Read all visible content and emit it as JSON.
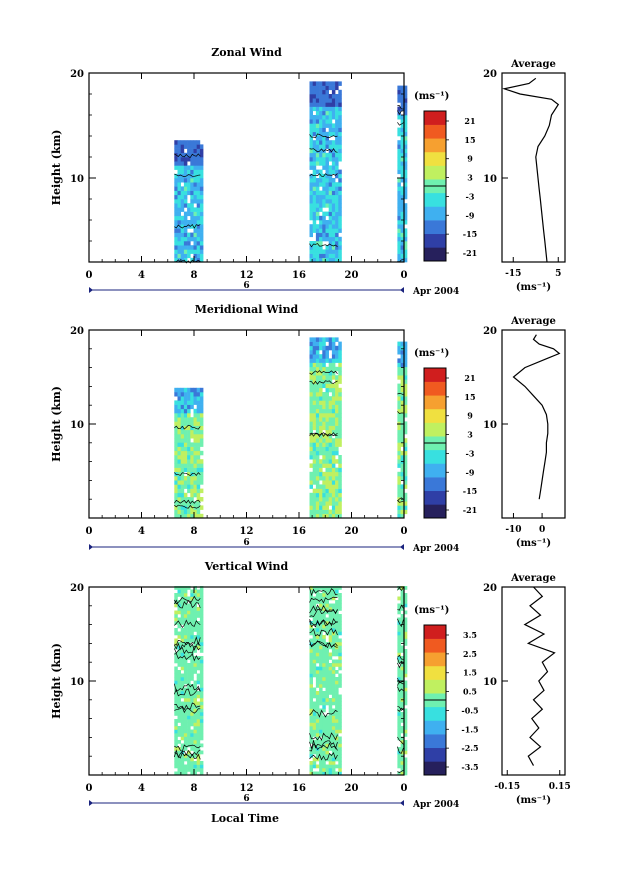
{
  "chart_data": {
    "type": "heatmap",
    "x_label": "Local Time",
    "x_ticks": [
      "0",
      "4",
      "8",
      "12",
      "16",
      "20",
      "0"
    ],
    "date_marker": "6",
    "date_label": "Apr 2004",
    "y_label": "Height (km)",
    "y_ticks": [
      "20",
      "10"
    ],
    "unit_label": "(ms⁻¹)",
    "profile_unit_label": "(ms⁻¹)",
    "profile_title": "Average",
    "panels": [
      {
        "title": "Zonal Wind",
        "colorbar_ticks": [
          "21",
          "15",
          "9",
          "3",
          "-3",
          "-9",
          "-15",
          "-21"
        ],
        "profile_ticks": [
          "-15",
          "5"
        ],
        "profile_xlim": [
          -20,
          8
        ],
        "profile": [
          {
            "h": 2,
            "v": 0
          },
          {
            "h": 3,
            "v": -0.5
          },
          {
            "h": 4,
            "v": -1
          },
          {
            "h": 5,
            "v": -1.5
          },
          {
            "h": 6,
            "v": -2
          },
          {
            "h": 7,
            "v": -2.5
          },
          {
            "h": 8,
            "v": -3
          },
          {
            "h": 9,
            "v": -3.5
          },
          {
            "h": 10,
            "v": -4
          },
          {
            "h": 11,
            "v": -4.5
          },
          {
            "h": 12,
            "v": -5
          },
          {
            "h": 13,
            "v": -4
          },
          {
            "h": 14,
            "v": -1
          },
          {
            "h": 15,
            "v": 1
          },
          {
            "h": 16,
            "v": 2
          },
          {
            "h": 17,
            "v": 5
          },
          {
            "h": 17.5,
            "v": 2
          },
          {
            "h": 18,
            "v": -12
          },
          {
            "h": 18.5,
            "v": -19
          },
          {
            "h": 19,
            "v": -8
          },
          {
            "h": 19.5,
            "v": -5
          }
        ],
        "bands": [
          {
            "start": 6.5,
            "end": 8.5,
            "bottom": 2,
            "top": 13.5
          },
          {
            "start": 16.8,
            "end": 19.0,
            "bottom": 2,
            "top": 19.0
          },
          {
            "start": 23.5,
            "end": 24.0,
            "bottom": 2,
            "top": 18.5
          }
        ],
        "dominant_values": [
          -7,
          -5,
          -9,
          -3,
          -11,
          -6
        ],
        "top_values": [
          -15,
          -12,
          -18,
          -13
        ]
      },
      {
        "title": "Meridional Wind",
        "colorbar_ticks": [
          "21",
          "15",
          "9",
          "3",
          "-3",
          "-9",
          "-15",
          "-21"
        ],
        "profile_ticks": [
          "-10",
          "0"
        ],
        "profile_xlim": [
          -14,
          8
        ],
        "profile": [
          {
            "h": 2,
            "v": -1
          },
          {
            "h": 3,
            "v": -0.5
          },
          {
            "h": 4,
            "v": 0
          },
          {
            "h": 5,
            "v": 0.5
          },
          {
            "h": 6,
            "v": 1
          },
          {
            "h": 7,
            "v": 1.5
          },
          {
            "h": 8,
            "v": 1.5
          },
          {
            "h": 9,
            "v": 2
          },
          {
            "h": 10,
            "v": 2
          },
          {
            "h": 11,
            "v": 1.5
          },
          {
            "h": 12,
            "v": 0
          },
          {
            "h": 13,
            "v": -3
          },
          {
            "h": 14,
            "v": -6
          },
          {
            "h": 15,
            "v": -10
          },
          {
            "h": 16,
            "v": -6
          },
          {
            "h": 17,
            "v": 2
          },
          {
            "h": 17.5,
            "v": 6
          },
          {
            "h": 18,
            "v": 4
          },
          {
            "h": 18.5,
            "v": -1
          },
          {
            "h": 19,
            "v": -3
          },
          {
            "h": 19.5,
            "v": -2
          }
        ],
        "bands": [
          {
            "start": 6.5,
            "end": 8.5,
            "bottom": 0,
            "top": 13.5
          },
          {
            "start": 16.8,
            "end": 19.0,
            "bottom": 0,
            "top": 19.0
          },
          {
            "start": 23.5,
            "end": 24.0,
            "bottom": 0,
            "top": 18.5
          }
        ],
        "dominant_values": [
          2,
          3,
          1,
          -1,
          4,
          -2
        ],
        "top_values": [
          -9,
          -13,
          -6,
          -10
        ]
      },
      {
        "title": "Vertical Wind",
        "colorbar_ticks": [
          "3.5",
          "2.5",
          "1.5",
          "0.5",
          "-0.5",
          "-1.5",
          "-2.5",
          "-3.5"
        ],
        "profile_ticks": [
          "-0.15",
          "0.15"
        ],
        "profile_xlim": [
          -0.18,
          0.18
        ],
        "profile": [
          {
            "h": 1,
            "v": 0.0
          },
          {
            "h": 2,
            "v": -0.03
          },
          {
            "h": 3,
            "v": 0.04
          },
          {
            "h": 4,
            "v": -0.02
          },
          {
            "h": 5,
            "v": 0.03
          },
          {
            "h": 6,
            "v": -0.01
          },
          {
            "h": 7,
            "v": 0.05
          },
          {
            "h": 8,
            "v": 0.0
          },
          {
            "h": 9,
            "v": 0.06
          },
          {
            "h": 10,
            "v": 0.03
          },
          {
            "h": 11,
            "v": 0.08
          },
          {
            "h": 12,
            "v": 0.05
          },
          {
            "h": 13,
            "v": 0.12
          },
          {
            "h": 14,
            "v": -0.03
          },
          {
            "h": 15,
            "v": 0.06
          },
          {
            "h": 16,
            "v": -0.05
          },
          {
            "h": 17,
            "v": 0.04
          },
          {
            "h": 18,
            "v": -0.02
          },
          {
            "h": 19,
            "v": 0.05
          },
          {
            "h": 20,
            "v": 0.0
          }
        ],
        "bands": [
          {
            "start": 6.5,
            "end": 8.5,
            "bottom": 0,
            "top": 20
          },
          {
            "start": 16.8,
            "end": 19.0,
            "bottom": 0,
            "top": 20
          },
          {
            "start": 23.5,
            "end": 24.0,
            "bottom": 0,
            "top": 20
          }
        ],
        "dominant_values": [
          0.1,
          -0.1,
          0.2,
          0.0,
          -0.2,
          0.3
        ],
        "top_values": [
          0.1,
          -0.1,
          0.2,
          0.0
        ]
      }
    ]
  },
  "colors": {
    "colormap": [
      "#26205c",
      "#2f3fa6",
      "#3a78d8",
      "#3fb0f0",
      "#38e0e0",
      "#6ff0b0",
      "#c0f060",
      "#f0e040",
      "#f6a030",
      "#f05a20",
      "#d01e1e"
    ],
    "contour": "#000000"
  }
}
